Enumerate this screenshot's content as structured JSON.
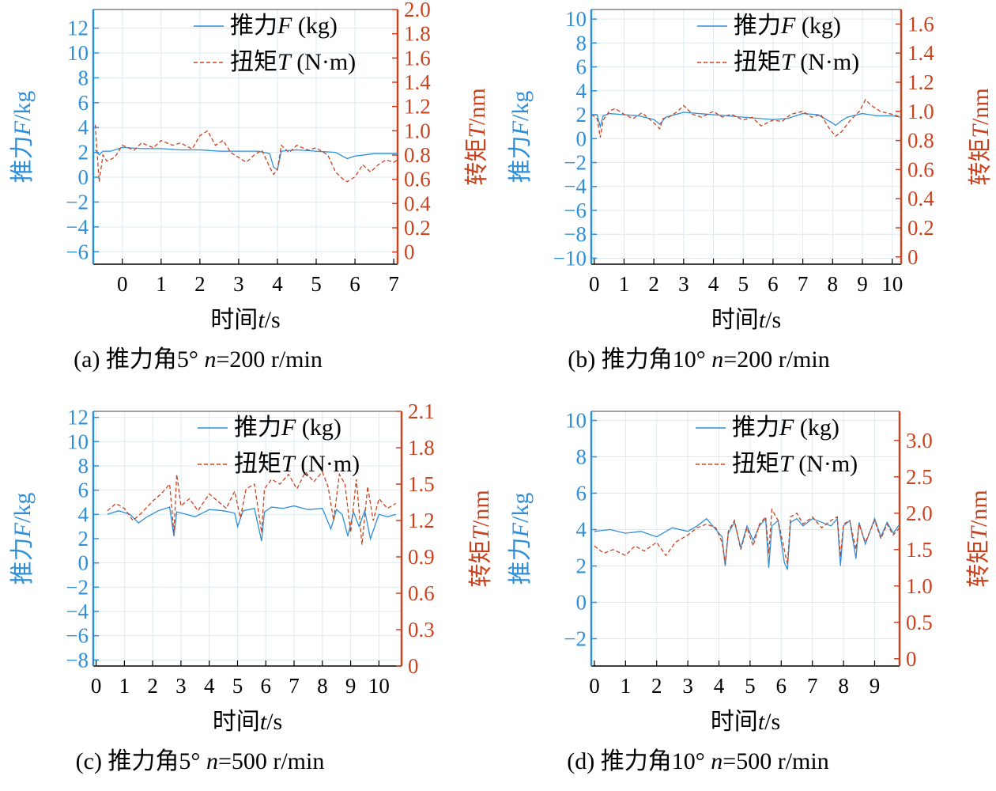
{
  "figure": {
    "thrust_color": "#2f8fd8",
    "torque_color": "#c9431f"
  },
  "chart_data": [
    {
      "type": "line",
      "caption": {
        "prefix": "(a) 推力角5° ",
        "n": "n",
        "suffix": "=200 r/min"
      },
      "xlabel": {
        "prefix": "时间",
        "var": "t",
        "suffix": "/s"
      },
      "ylabel_left": {
        "prefix": "推力",
        "var": "F",
        "suffix": "/kg"
      },
      "ylabel_right": {
        "prefix": "转矩",
        "var": "T",
        "suffix": "/nm"
      },
      "legend": {
        "position": "top-right",
        "items": [
          {
            "prefix": "推力",
            "var": "F",
            "suffix": " (kg)"
          },
          {
            "prefix": "扭矩",
            "var": "T",
            "suffix": " (N·m)"
          }
        ]
      },
      "xlim": [
        -0.75,
        7.1
      ],
      "xticks": [
        "0",
        "1",
        "2",
        "3",
        "4",
        "5",
        "6",
        "7"
      ],
      "ylim_left": [
        -7,
        13.5
      ],
      "yticks_left": [
        "−6",
        "−4",
        "−2",
        "0",
        "2",
        "4",
        "6",
        "8",
        "10",
        "12"
      ],
      "ylim_right": [
        -0.1,
        2.0
      ],
      "yticks_right": [
        "0",
        "0.2",
        "0.4",
        "0.6",
        "0.8",
        "1.0",
        "1.2",
        "1.4",
        "1.6",
        "1.8",
        "2.0"
      ],
      "series": [
        {
          "name": "推力F (kg)",
          "axis": "left",
          "style": "solid",
          "x": [
            -0.7,
            -0.6,
            -0.5,
            -0.3,
            0,
            0.5,
            1,
            1.5,
            2,
            2.5,
            3,
            3.5,
            3.8,
            3.9,
            4.0,
            4.1,
            4.5,
            5,
            5.5,
            5.8,
            6,
            6.5,
            7,
            7.1
          ],
          "y": [
            2.2,
            1.8,
            2.1,
            2.1,
            2.4,
            2.3,
            2.3,
            2.2,
            2.2,
            2.1,
            2.1,
            2.1,
            1.9,
            0.8,
            0.6,
            2.1,
            2.2,
            2.1,
            2.0,
            1.5,
            1.7,
            1.9,
            1.9,
            1.9
          ]
        },
        {
          "name": "扭矩T (N·m)",
          "axis": "right",
          "style": "dashed",
          "x": [
            -0.7,
            -0.6,
            -0.5,
            -0.4,
            -0.2,
            0,
            0.3,
            0.5,
            0.8,
            1,
            1.3,
            1.5,
            1.8,
            2,
            2.2,
            2.4,
            2.6,
            2.8,
            3,
            3.2,
            3.4,
            3.6,
            3.8,
            3.9,
            4.0,
            4.1,
            4.3,
            4.5,
            4.8,
            5,
            5.3,
            5.5,
            5.7,
            5.8,
            6,
            6.2,
            6.4,
            6.6,
            6.8,
            7,
            7.1
          ],
          "y": [
            1.05,
            0.58,
            0.8,
            0.75,
            0.78,
            0.88,
            0.84,
            0.9,
            0.86,
            0.92,
            0.88,
            0.9,
            0.85,
            0.96,
            1.0,
            0.88,
            0.92,
            0.82,
            0.78,
            0.74,
            0.8,
            0.84,
            0.7,
            0.64,
            0.68,
            0.88,
            0.82,
            0.88,
            0.84,
            0.86,
            0.8,
            0.66,
            0.6,
            0.58,
            0.62,
            0.72,
            0.66,
            0.72,
            0.76,
            0.74,
            0.76
          ]
        }
      ]
    },
    {
      "type": "line",
      "caption": {
        "prefix": "(b) 推力角10° ",
        "n": "n",
        "suffix": "=200 r/min"
      },
      "xlabel": {
        "prefix": "时间",
        "var": "t",
        "suffix": "/s"
      },
      "ylabel_left": {
        "prefix": "推力",
        "var": "F",
        "suffix": "/kg"
      },
      "ylabel_right": {
        "prefix": "转矩",
        "var": "T",
        "suffix": "/nm"
      },
      "legend": {
        "position": "top-right",
        "items": [
          {
            "prefix": "推力",
            "var": "F",
            "suffix": " (kg)"
          },
          {
            "prefix": "扭矩",
            "var": "T",
            "suffix": " (N·m)"
          }
        ]
      },
      "xlim": [
        -0.1,
        10.3
      ],
      "xticks": [
        "0",
        "1",
        "2",
        "3",
        "4",
        "5",
        "6",
        "7",
        "8",
        "9",
        "10"
      ],
      "ylim_left": [
        -10.5,
        10.8
      ],
      "yticks_left": [
        "−10",
        "−8",
        "−6",
        "−4",
        "−2",
        "0",
        "2",
        "4",
        "6",
        "8",
        "10"
      ],
      "ylim_right": [
        -0.05,
        1.7
      ],
      "yticks_right": [
        "0",
        "0.2",
        "0.4",
        "0.6",
        "0.8",
        "1.0",
        "1.2",
        "1.4",
        "1.6"
      ],
      "series": [
        {
          "name": "推力F (kg)",
          "axis": "left",
          "style": "solid",
          "x": [
            -0.1,
            0.1,
            0.2,
            0.3,
            0.5,
            1,
            1.5,
            2,
            2.2,
            2.4,
            3,
            4,
            5,
            6,
            6.5,
            7,
            7.5,
            8,
            8.1,
            8.3,
            8.5,
            9,
            9.5,
            10,
            10.3
          ],
          "y": [
            2.0,
            2.0,
            1.0,
            1.9,
            2.1,
            2.0,
            1.9,
            1.6,
            1.2,
            1.8,
            2.2,
            2.0,
            1.8,
            1.6,
            1.7,
            2.1,
            2.0,
            1.3,
            1.1,
            1.5,
            1.8,
            2.1,
            1.9,
            1.9,
            1.8
          ]
        },
        {
          "name": "扭矩T (N·m)",
          "axis": "right",
          "style": "dashed",
          "x": [
            -0.1,
            0.1,
            0.2,
            0.3,
            0.5,
            0.7,
            1,
            1.3,
            1.6,
            2,
            2.2,
            2.3,
            2.5,
            2.8,
            3,
            3.3,
            3.6,
            4,
            4.3,
            4.6,
            5,
            5.3,
            5.6,
            6,
            6.3,
            6.6,
            7,
            7.3,
            7.6,
            7.9,
            8.1,
            8.3,
            8.6,
            8.9,
            9.1,
            9.3,
            9.6,
            10,
            10.3
          ],
          "y": [
            0.98,
            0.95,
            0.82,
            0.94,
            1.0,
            1.02,
            0.98,
            0.95,
            0.99,
            0.92,
            0.88,
            0.95,
            0.96,
            1.0,
            1.04,
            0.98,
            0.96,
            1.0,
            0.96,
            0.98,
            0.94,
            0.96,
            0.9,
            0.94,
            0.93,
            0.98,
            1.0,
            0.96,
            0.98,
            0.88,
            0.83,
            0.86,
            0.94,
            1.0,
            1.08,
            1.04,
            1.0,
            0.98,
            0.96
          ]
        }
      ]
    },
    {
      "type": "line",
      "caption": {
        "prefix": "(c) 推力角5° ",
        "n": "n",
        "suffix": "=500 r/min"
      },
      "xlabel": {
        "prefix": "时间",
        "var": "t",
        "suffix": "/s"
      },
      "ylabel_left": {
        "prefix": "推力",
        "var": "F",
        "suffix": "/kg"
      },
      "ylabel_right": {
        "prefix": "转矩",
        "var": "T",
        "suffix": "/nm"
      },
      "legend": {
        "position": "top-right",
        "items": [
          {
            "prefix": "推力",
            "var": "F",
            "suffix": " (kg)"
          },
          {
            "prefix": "扭矩",
            "var": "T",
            "suffix": " (N·m)"
          }
        ]
      },
      "xlim": [
        -0.1,
        10.8
      ],
      "xticks": [
        "0",
        "1",
        "2",
        "3",
        "4",
        "5",
        "6",
        "7",
        "8",
        "9",
        "10"
      ],
      "ylim_left": [
        -8.5,
        12.5
      ],
      "yticks_left": [
        "−8",
        "−6",
        "−4",
        "−2",
        "0",
        "2",
        "4",
        "6",
        "8",
        "10",
        "12"
      ],
      "ylim_right": [
        0,
        2.1
      ],
      "yticks_right": [
        "0",
        "0.3",
        "0.6",
        "0.9",
        "1.2",
        "1.5",
        "1.8",
        "2.1"
      ],
      "series": [
        {
          "name": "推力F (kg)",
          "axis": "left",
          "style": "solid",
          "x": [
            0.4,
            0.8,
            1.2,
            1.5,
            1.8,
            2.2,
            2.6,
            2.75,
            2.85,
            3.2,
            3.5,
            4,
            4.5,
            4.9,
            5.0,
            5.2,
            5.6,
            5.85,
            5.95,
            6.2,
            6.6,
            7,
            7.5,
            8,
            8.3,
            8.5,
            8.7,
            8.9,
            9.1,
            9.3,
            9.5,
            9.7,
            10,
            10.3,
            10.6
          ],
          "y": [
            4.0,
            4.3,
            4.0,
            3.3,
            3.8,
            4.3,
            4.6,
            2.2,
            4.2,
            4.0,
            3.8,
            4.4,
            4.3,
            4.1,
            3.0,
            4.3,
            4.5,
            1.8,
            4.2,
            4.6,
            4.5,
            4.7,
            4.4,
            4.5,
            2.8,
            4.4,
            4.0,
            2.2,
            4.2,
            3.0,
            4.3,
            2.0,
            4.0,
            3.8,
            4.0
          ]
        },
        {
          "name": "扭矩T (N·m)",
          "axis": "right",
          "style": "dashed",
          "x": [
            0.4,
            0.7,
            1,
            1.3,
            1.6,
            2,
            2.3,
            2.6,
            2.75,
            2.85,
            3,
            3.3,
            3.6,
            4,
            4.3,
            4.6,
            4.9,
            5.1,
            5.3,
            5.6,
            5.85,
            5.95,
            6.2,
            6.5,
            6.8,
            7.1,
            7.4,
            7.7,
            8,
            8.2,
            8.4,
            8.6,
            8.8,
            9,
            9.2,
            9.4,
            9.6,
            9.8,
            10,
            10.3,
            10.6
          ],
          "y": [
            1.28,
            1.34,
            1.3,
            1.2,
            1.26,
            1.36,
            1.42,
            1.5,
            1.1,
            1.58,
            1.32,
            1.38,
            1.28,
            1.42,
            1.36,
            1.3,
            1.44,
            1.22,
            1.46,
            1.5,
            1.1,
            1.46,
            1.54,
            1.5,
            1.58,
            1.46,
            1.6,
            1.52,
            1.6,
            1.48,
            1.2,
            1.58,
            1.5,
            1.1,
            1.54,
            1.0,
            1.48,
            1.2,
            1.38,
            1.3,
            1.34
          ]
        }
      ]
    },
    {
      "type": "line",
      "caption": {
        "prefix": "(d) 推力角10° ",
        "n": "n",
        "suffix": "=500 r/min"
      },
      "xlabel": {
        "prefix": "时间",
        "var": "t",
        "suffix": "/s"
      },
      "ylabel_left": {
        "prefix": "推力",
        "var": "F",
        "suffix": "/kg"
      },
      "ylabel_right": {
        "prefix": "转矩",
        "var": "T",
        "suffix": "/nm"
      },
      "legend": {
        "position": "top-right",
        "items": [
          {
            "prefix": "推力",
            "var": "F",
            "suffix": " (kg)"
          },
          {
            "prefix": "扭矩",
            "var": "T",
            "suffix": " (N·m)"
          }
        ]
      },
      "xlim": [
        -0.1,
        9.8
      ],
      "xticks": [
        "0",
        "1",
        "2",
        "3",
        "4",
        "5",
        "6",
        "7",
        "8",
        "9"
      ],
      "ylim_left": [
        -3.5,
        10.5
      ],
      "yticks_left": [
        "−2",
        "0",
        "2",
        "4",
        "6",
        "8",
        "10"
      ],
      "ylim_right": [
        -0.1,
        3.4
      ],
      "yticks_right": [
        "0",
        "0.5",
        "1.0",
        "1.5",
        "2.0",
        "2.5",
        "3.0"
      ],
      "series": [
        {
          "name": "推力F (kg)",
          "axis": "left",
          "style": "solid",
          "x": [
            0,
            0.5,
            1,
            1.5,
            2,
            2.5,
            3,
            3.3,
            3.6,
            3.9,
            4.1,
            4.2,
            4.3,
            4.5,
            4.7,
            4.9,
            5.1,
            5.3,
            5.5,
            5.6,
            5.7,
            5.9,
            6.1,
            6.2,
            6.3,
            6.5,
            6.7,
            7,
            7.3,
            7.6,
            7.8,
            7.9,
            8,
            8.2,
            8.4,
            8.5,
            8.7,
            9,
            9.2,
            9.4,
            9.6,
            9.8
          ],
          "y": [
            3.9,
            4.0,
            3.8,
            3.9,
            3.6,
            4.1,
            3.9,
            4.2,
            4.6,
            4.0,
            3.6,
            2.0,
            3.8,
            4.4,
            3.0,
            4.2,
            3.4,
            4.2,
            4.6,
            1.9,
            4.2,
            4.5,
            2.2,
            1.8,
            4.4,
            4.6,
            4.2,
            4.6,
            4.4,
            4.2,
            4.6,
            2.0,
            4.2,
            4.5,
            2.4,
            4.4,
            3.2,
            4.6,
            3.6,
            4.4,
            3.8,
            4.3
          ]
        },
        {
          "name": "扭矩T (N·m)",
          "axis": "right",
          "style": "dashed",
          "x": [
            0,
            0.3,
            0.6,
            1,
            1.3,
            1.6,
            2,
            2.3,
            2.6,
            3,
            3.3,
            3.6,
            3.9,
            4.1,
            4.2,
            4.3,
            4.5,
            4.7,
            4.9,
            5.1,
            5.3,
            5.5,
            5.6,
            5.7,
            5.9,
            6.1,
            6.2,
            6.3,
            6.5,
            6.7,
            7,
            7.3,
            7.6,
            7.8,
            7.9,
            8,
            8.2,
            8.4,
            8.5,
            8.7,
            9,
            9.2,
            9.4,
            9.6,
            9.8
          ],
          "y": [
            1.55,
            1.45,
            1.5,
            1.42,
            1.55,
            1.48,
            1.6,
            1.42,
            1.6,
            1.7,
            1.8,
            1.85,
            1.8,
            1.6,
            1.3,
            1.75,
            1.9,
            1.5,
            1.8,
            1.55,
            1.85,
            1.95,
            1.45,
            2.05,
            1.9,
            1.5,
            1.3,
            1.95,
            2.0,
            1.85,
            1.95,
            1.8,
            1.9,
            1.95,
            1.4,
            1.85,
            1.9,
            1.5,
            1.85,
            1.6,
            1.9,
            1.65,
            1.85,
            1.7,
            1.8
          ]
        }
      ]
    }
  ]
}
